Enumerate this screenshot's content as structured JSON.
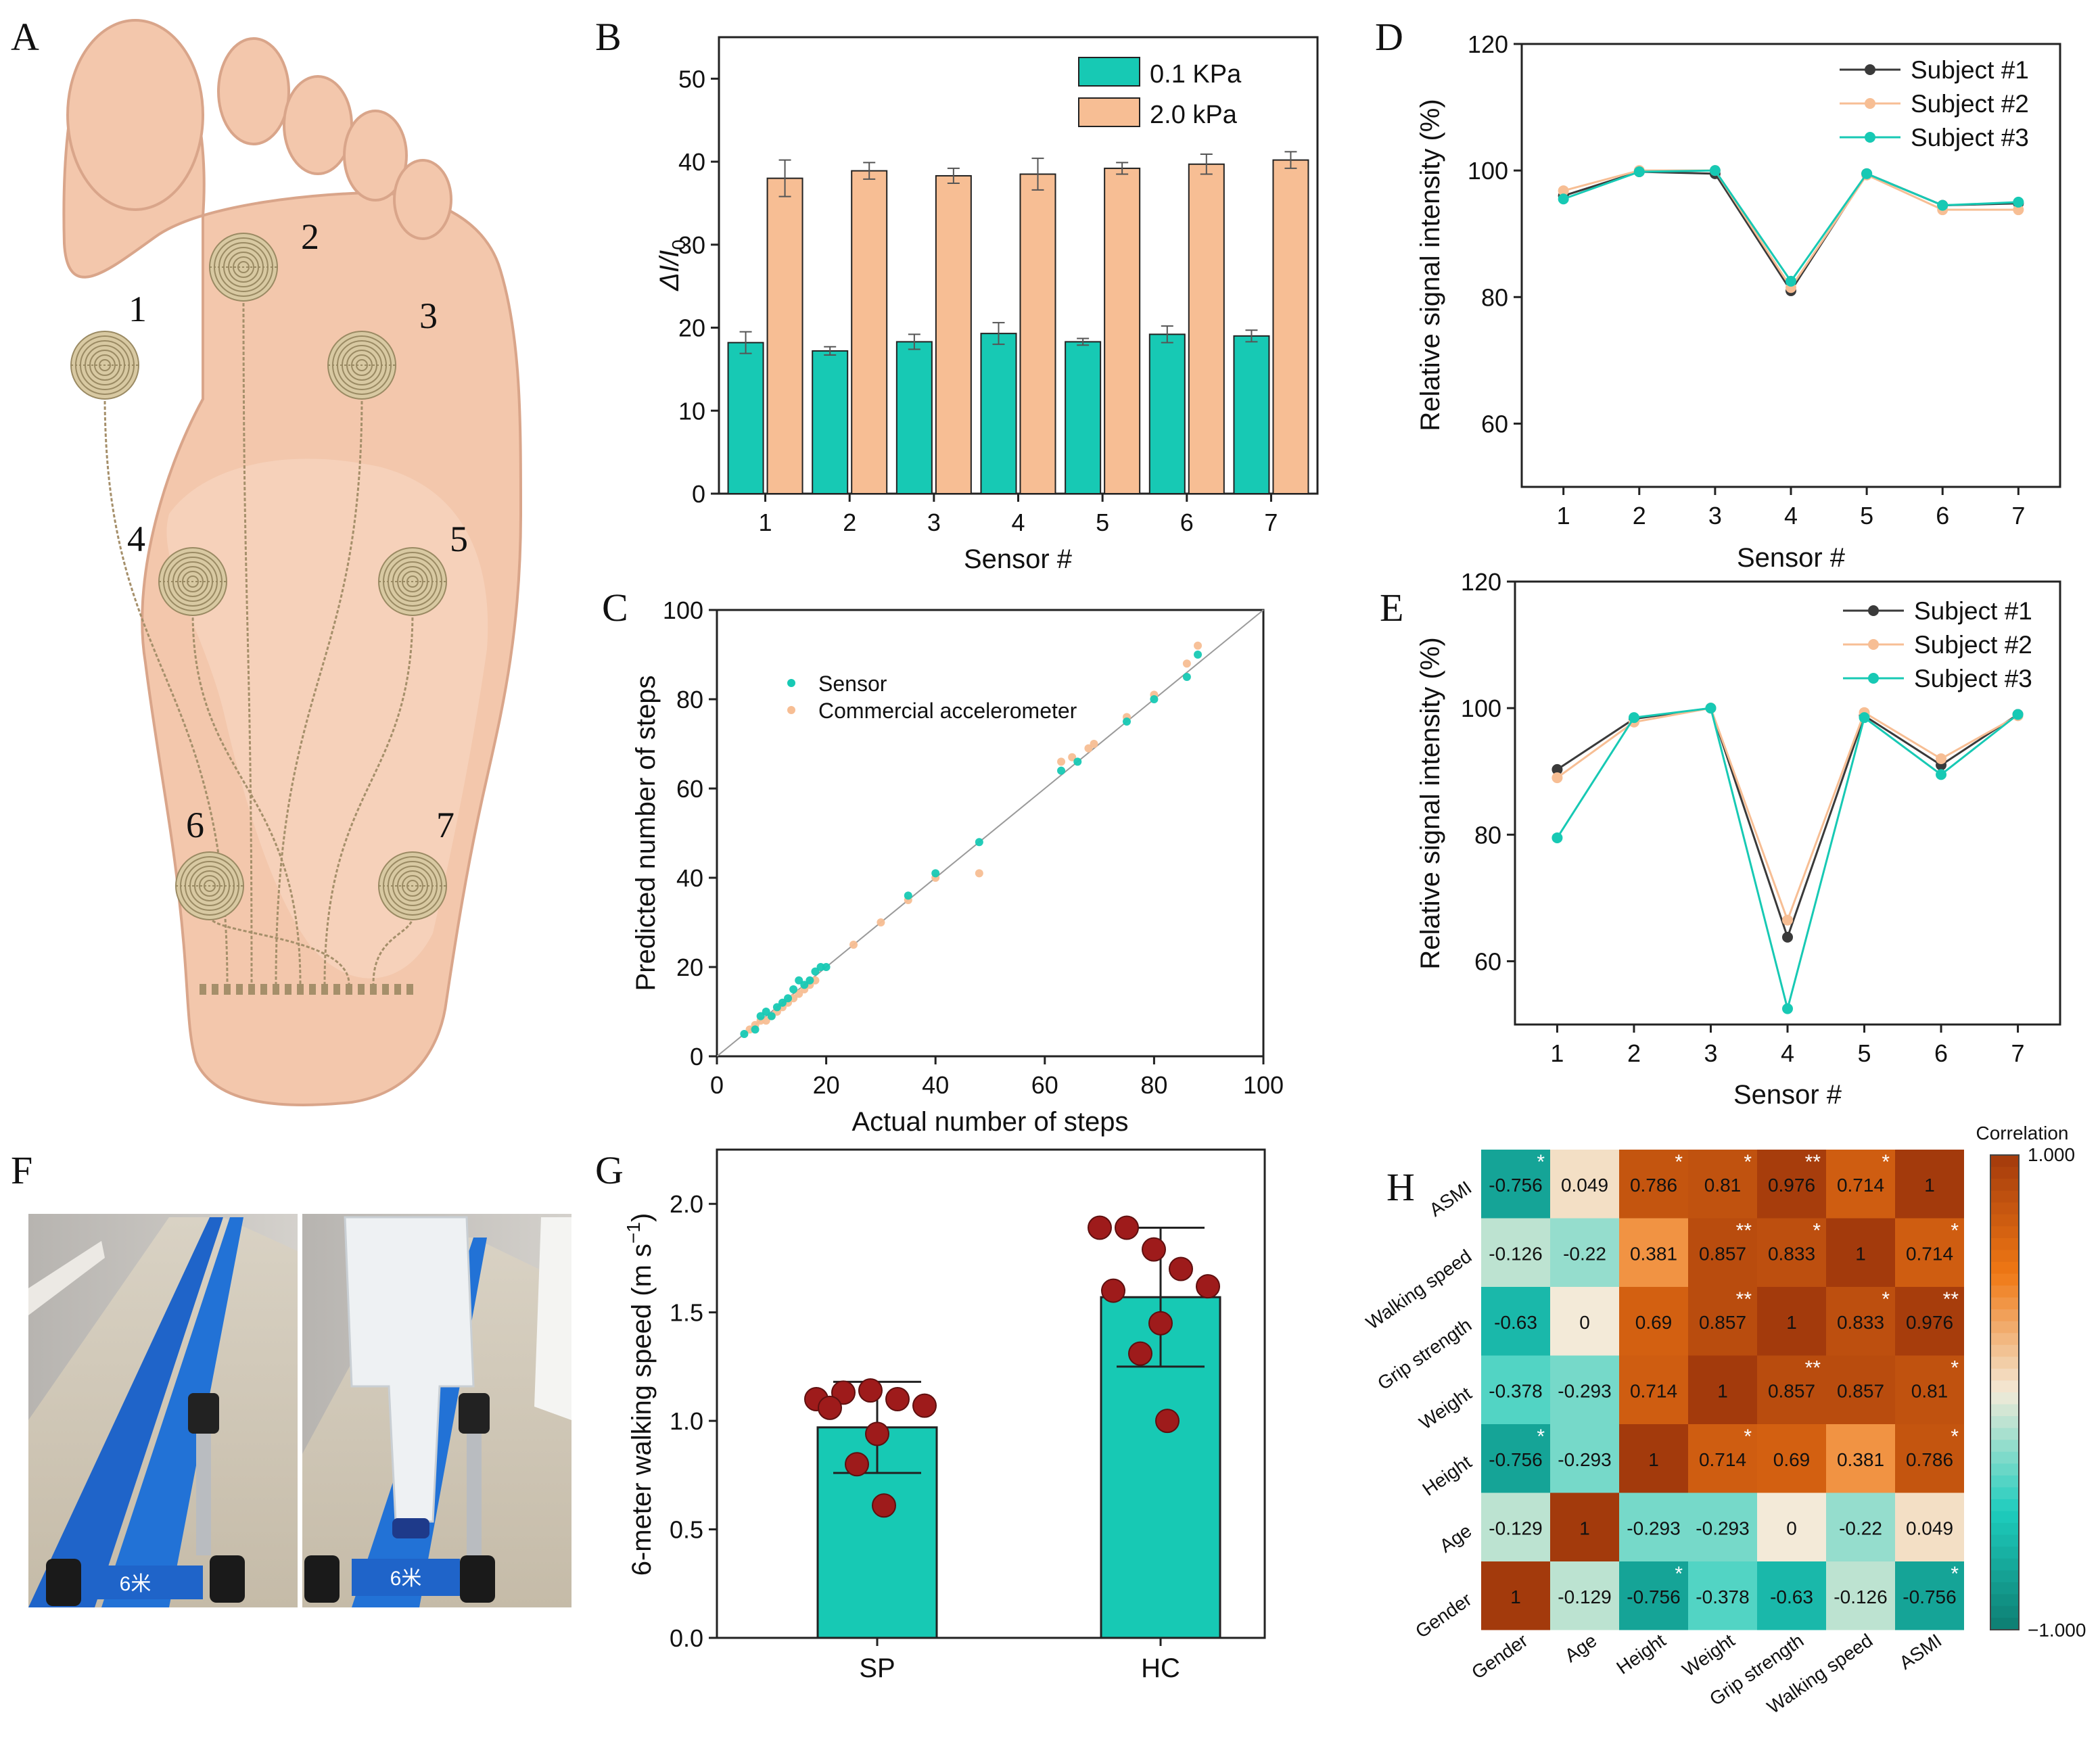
{
  "colors": {
    "teal": "#17c9b4",
    "peach": "#f7be94",
    "dark": "#3a3a3a",
    "maroon": "#9e1b1b",
    "heat_high": "#a33a0c",
    "heat_mid": "#f3ead8",
    "heat_low": "#0d7d71"
  },
  "panel_labels": {
    "A": "A",
    "B": "B",
    "C": "C",
    "D": "D",
    "E": "E",
    "F": "F",
    "G": "G",
    "H": "H"
  },
  "panel_a": {
    "sensor_numbers": [
      "1",
      "2",
      "3",
      "4",
      "5",
      "6",
      "7"
    ]
  },
  "panel_f": {
    "floor_marker": "6米"
  },
  "chart_data": [
    {
      "id": "B",
      "type": "bar",
      "title": "",
      "xlabel": "Sensor #",
      "ylabel": "ΔI/I0",
      "ylabel_main": "ΔI/I",
      "ylabel_sub": "0",
      "categories": [
        "1",
        "2",
        "3",
        "4",
        "5",
        "6",
        "7"
      ],
      "ylim": [
        0,
        55
      ],
      "yticks": [
        "0",
        "10",
        "20",
        "30",
        "40",
        "50"
      ],
      "legend_position": "top-right",
      "series": [
        {
          "name": "0.1 KPa",
          "values": [
            18.2,
            17.2,
            18.3,
            19.3,
            18.3,
            19.2,
            19.0
          ],
          "errors": [
            1.3,
            0.5,
            0.9,
            1.3,
            0.4,
            1.0,
            0.7
          ]
        },
        {
          "name": "2.0 kPa",
          "values": [
            38.0,
            38.9,
            38.3,
            38.5,
            39.2,
            39.7,
            40.2
          ],
          "errors": [
            2.2,
            1.0,
            0.9,
            1.9,
            0.7,
            1.2,
            1.0
          ]
        }
      ]
    },
    {
      "id": "C",
      "type": "scatter",
      "title": "",
      "xlabel": "Actual number of steps",
      "ylabel": "Predicted number of steps",
      "xlim": [
        0,
        100
      ],
      "ylim": [
        0,
        100
      ],
      "xticks": [
        "0",
        "20",
        "40",
        "60",
        "80",
        "100"
      ],
      "yticks": [
        "0",
        "20",
        "40",
        "60",
        "80",
        "100"
      ],
      "legend_position": "top-left",
      "series": [
        {
          "name": "Sensor",
          "points": [
            [
              5,
              5
            ],
            [
              7,
              6
            ],
            [
              8,
              9
            ],
            [
              9,
              10
            ],
            [
              10,
              9
            ],
            [
              11,
              11
            ],
            [
              12,
              12
            ],
            [
              13,
              13
            ],
            [
              14,
              15
            ],
            [
              15,
              17
            ],
            [
              16,
              16
            ],
            [
              17,
              17
            ],
            [
              18,
              19
            ],
            [
              19,
              20
            ],
            [
              20,
              20
            ],
            [
              35,
              36
            ],
            [
              40,
              41
            ],
            [
              48,
              48
            ],
            [
              63,
              64
            ],
            [
              66,
              66
            ],
            [
              75,
              75
            ],
            [
              80,
              80
            ],
            [
              86,
              85
            ],
            [
              88,
              90
            ]
          ]
        },
        {
          "name": "Commercial accelerometer",
          "points": [
            [
              6,
              6
            ],
            [
              7,
              7
            ],
            [
              8,
              8
            ],
            [
              9,
              8
            ],
            [
              10,
              9
            ],
            [
              11,
              10
            ],
            [
              12,
              11
            ],
            [
              13,
              12
            ],
            [
              14,
              13
            ],
            [
              15,
              14
            ],
            [
              16,
              15
            ],
            [
              17,
              16
            ],
            [
              18,
              17
            ],
            [
              25,
              25
            ],
            [
              30,
              30
            ],
            [
              35,
              35
            ],
            [
              40,
              40
            ],
            [
              48,
              41
            ],
            [
              63,
              66
            ],
            [
              65,
              67
            ],
            [
              68,
              69
            ],
            [
              69,
              70
            ],
            [
              75,
              76
            ],
            [
              80,
              81
            ],
            [
              86,
              88
            ],
            [
              88,
              92
            ]
          ]
        }
      ]
    },
    {
      "id": "D",
      "type": "line",
      "title": "",
      "xlabel": "Sensor #",
      "ylabel": "Relative signal intensity (%)",
      "x": [
        "1",
        "2",
        "3",
        "4",
        "5",
        "6",
        "7"
      ],
      "ylim": [
        50,
        120
      ],
      "yticks": [
        "60",
        "80",
        "100",
        "120"
      ],
      "legend_position": "top-right",
      "series": [
        {
          "name": "Subject #1",
          "values": [
            96.0,
            99.8,
            99.5,
            81.0,
            99.5,
            94.5,
            94.8
          ]
        },
        {
          "name": "Subject #2",
          "values": [
            96.8,
            100.0,
            100.0,
            81.5,
            99.3,
            93.8,
            93.8
          ]
        },
        {
          "name": "Subject #3",
          "values": [
            95.5,
            99.8,
            100.0,
            82.5,
            99.5,
            94.5,
            95.0
          ]
        }
      ]
    },
    {
      "id": "E",
      "type": "line",
      "title": "",
      "xlabel": "Sensor #",
      "ylabel": "Relative signal intensity (%)",
      "x": [
        "1",
        "2",
        "3",
        "4",
        "5",
        "6",
        "7"
      ],
      "ylim": [
        50,
        120
      ],
      "yticks": [
        "60",
        "80",
        "100",
        "120"
      ],
      "legend_position": "top-right",
      "series": [
        {
          "name": "Subject #1",
          "values": [
            90.3,
            98.3,
            100.0,
            63.8,
            98.8,
            91.0,
            99.0
          ]
        },
        {
          "name": "Subject #2",
          "values": [
            89.0,
            97.8,
            100.0,
            66.5,
            99.3,
            92.0,
            98.8
          ]
        },
        {
          "name": "Subject #3",
          "values": [
            79.5,
            98.5,
            100.0,
            52.5,
            98.5,
            89.5,
            99.0
          ]
        }
      ]
    },
    {
      "id": "G",
      "type": "bar",
      "title": "",
      "xlabel": "",
      "ylabel": "6-meter walking speed (m s⁻¹)",
      "ylabel_main": "6-meter walking speed (m s",
      "ylabel_sup": "−1",
      "ylabel_end": ")",
      "categories": [
        "SP",
        "HC"
      ],
      "ylim": [
        0,
        2.25
      ],
      "yticks": [
        "0.0",
        "0.5",
        "1.0",
        "1.5",
        "2.0"
      ],
      "values": [
        0.97,
        1.57
      ],
      "errors": [
        0.21,
        0.32
      ],
      "points": [
        [
          1.1,
          1.13,
          1.14,
          1.1,
          1.07,
          1.06,
          0.94,
          0.8,
          0.61
        ],
        [
          1.89,
          1.89,
          1.79,
          1.7,
          1.62,
          1.6,
          1.45,
          1.31,
          1.0
        ]
      ]
    },
    {
      "id": "H",
      "type": "heatmap",
      "title": "",
      "row_labels": [
        "ASMI",
        "Walking speed",
        "Grip strength",
        "Weight",
        "Height",
        "Age",
        "Gender"
      ],
      "col_labels": [
        "Gender",
        "Age",
        "Height",
        "Weight",
        "Grip strength",
        "Walking speed",
        "ASMI"
      ],
      "colorbar_title": "Correlation",
      "colorbar_max": "1.000",
      "colorbar_min": "−1.000",
      "values": [
        [
          -0.756,
          0.049,
          0.786,
          0.81,
          0.976,
          0.714,
          1
        ],
        [
          -0.126,
          -0.22,
          0.381,
          0.857,
          0.833,
          1,
          0.714
        ],
        [
          -0.63,
          0,
          0.69,
          0.857,
          1,
          0.833,
          0.976
        ],
        [
          -0.378,
          -0.293,
          0.714,
          1,
          0.857,
          0.857,
          0.81
        ],
        [
          -0.756,
          -0.293,
          1,
          0.714,
          0.69,
          0.381,
          0.786
        ],
        [
          -0.129,
          1,
          -0.293,
          -0.293,
          0,
          -0.22,
          0.049
        ],
        [
          1,
          -0.129,
          -0.756,
          -0.378,
          -0.63,
          -0.126,
          -0.756
        ]
      ],
      "value_labels": [
        [
          "-0.756",
          "0.049",
          "0.786",
          "0.81",
          "0.976",
          "0.714",
          "1"
        ],
        [
          "-0.126",
          "-0.22",
          "0.381",
          "0.857",
          "0.833",
          "1",
          "0.714"
        ],
        [
          "-0.63",
          "0",
          "0.69",
          "0.857",
          "1",
          "0.833",
          "0.976"
        ],
        [
          "-0.378",
          "-0.293",
          "0.714",
          "1",
          "0.857",
          "0.857",
          "0.81"
        ],
        [
          "-0.756",
          "-0.293",
          "1",
          "0.714",
          "0.69",
          "0.381",
          "0.786"
        ],
        [
          "-0.129",
          "1",
          "-0.293",
          "-0.293",
          "0",
          "-0.22",
          "0.049"
        ],
        [
          "1",
          "-0.129",
          "-0.756",
          "-0.378",
          "-0.63",
          "-0.126",
          "-0.756"
        ]
      ],
      "significance": [
        [
          "*",
          "",
          "*",
          "*",
          "**",
          "*",
          ""
        ],
        [
          "",
          "",
          "",
          "**",
          "*",
          "",
          "*"
        ],
        [
          "",
          "",
          "",
          "**",
          "",
          "*",
          "**"
        ],
        [
          "",
          "",
          "",
          "",
          "**",
          "",
          "*"
        ],
        [
          "*",
          "",
          "",
          "*",
          "",
          "",
          "*"
        ],
        [
          "",
          "",
          "",
          "",
          "",
          "",
          ""
        ],
        [
          "",
          "",
          "*",
          "",
          "",
          "",
          "*"
        ]
      ]
    }
  ]
}
